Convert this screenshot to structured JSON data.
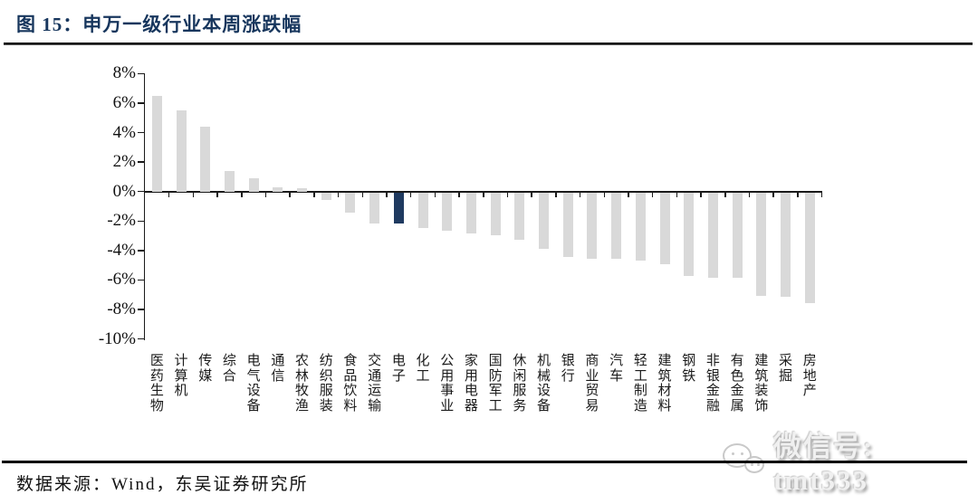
{
  "figure": {
    "title": "图 15：申万一级行业本周涨跌幅",
    "source": "数据来源：Wind，东吴证券研究所"
  },
  "watermark": {
    "label": "微信号: tmt333",
    "icon": "wechat-icon"
  },
  "colors": {
    "title_navy": "#17365D",
    "bar_gray": "#D9D9D9",
    "bar_highlight_navy": "#1F3A60",
    "axis_black": "#1a1a1a",
    "watermark_gray": "#DBDBDB"
  },
  "chart_data": {
    "type": "bar",
    "title": "申万一级行业本周涨跌幅",
    "xlabel": "",
    "ylabel": "",
    "unit": "%",
    "grid": false,
    "legend": "none",
    "ylim": [
      -10,
      8
    ],
    "yticks": [
      8,
      6,
      4,
      2,
      0,
      -2,
      -4,
      -6,
      -8,
      -10
    ],
    "ytick_labels": [
      "8%",
      "6%",
      "4%",
      "2%",
      "0%",
      "-2%",
      "-4%",
      "-6%",
      "-8%",
      "-10%"
    ],
    "categories": [
      "医药生物",
      "计算机",
      "传媒",
      "综合",
      "电气设备",
      "通信",
      "农林牧渔",
      "纺织服装",
      "食品饮料",
      "交通运输",
      "电子",
      "化工",
      "公用事业",
      "家用电器",
      "国防军工",
      "休闲服务",
      "机械设备",
      "银行",
      "商业贸易",
      "汽车",
      "轻工制造",
      "建筑材料",
      "钢铁",
      "非银金融",
      "有色金属",
      "建筑装饰",
      "采掘",
      "房地产"
    ],
    "values": [
      6.5,
      5.5,
      4.4,
      1.4,
      0.9,
      0.3,
      0.2,
      -0.5,
      -1.4,
      -2.1,
      -2.1,
      -2.4,
      -2.6,
      -2.8,
      -2.9,
      -3.2,
      -3.8,
      -4.4,
      -4.5,
      -4.5,
      -4.6,
      -4.9,
      -5.7,
      -5.8,
      -5.8,
      -7.0,
      -7.1,
      -7.5
    ],
    "highlight_category": "电子",
    "bar_color": "#D9D9D9",
    "highlight_color": "#1F3A60"
  }
}
